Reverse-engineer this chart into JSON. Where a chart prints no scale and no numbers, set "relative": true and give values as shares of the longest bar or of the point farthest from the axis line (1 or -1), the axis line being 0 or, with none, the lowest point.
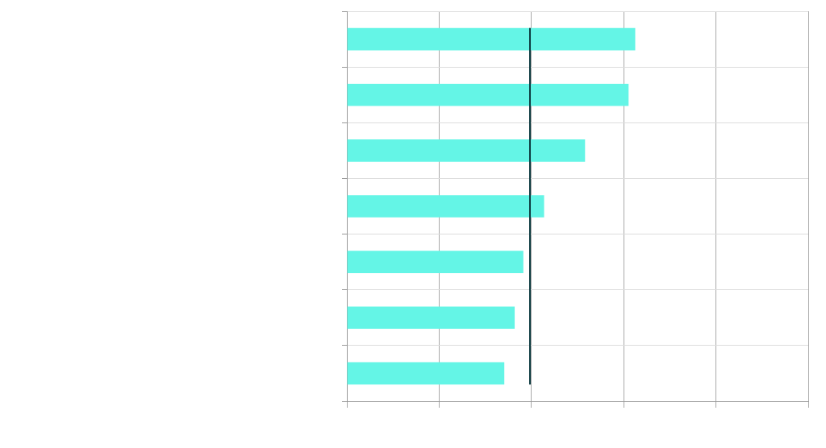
{
  "chart_data": {
    "type": "bar",
    "orientation": "horizontal",
    "relative": true,
    "categories": [
      null,
      null,
      null,
      null,
      null,
      null,
      null
    ],
    "values": [
      1,
      0.977,
      0.826,
      0.684,
      0.612,
      0.582,
      0.546
    ],
    "color": "#64f5e6",
    "grid": true,
    "legend": false,
    "ref_lines": [
      {
        "axis": "x",
        "value": 0.635,
        "color": "#0d3b40"
      }
    ]
  }
}
